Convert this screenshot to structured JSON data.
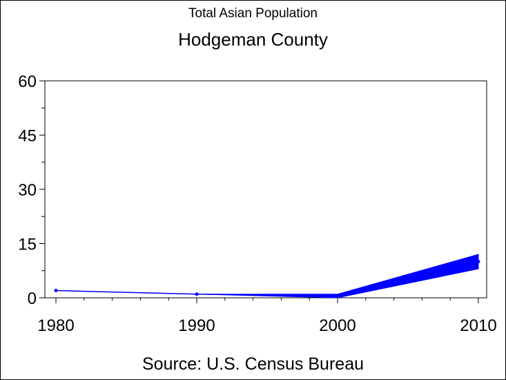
{
  "chart_data": {
    "type": "line",
    "title": "Hodgeman County",
    "subtitle": "Total Asian Population",
    "source": "Source: U.S. Census Bureau",
    "x": [
      1980,
      1990,
      2000,
      2010
    ],
    "series": [
      {
        "values": [
          2,
          1,
          0.5,
          10
        ],
        "band_low": [
          2,
          1,
          0,
          8
        ],
        "band_high": [
          2,
          1,
          1,
          12
        ],
        "color": "#0000ff"
      }
    ],
    "xlim": [
      1980,
      2010
    ],
    "ylim": [
      0,
      60
    ],
    "x_ticks": [
      "1980",
      "1990",
      "2000",
      "2010"
    ],
    "y_ticks": [
      "0",
      "15",
      "30",
      "45",
      "60"
    ],
    "grid": false,
    "legend": "none"
  }
}
